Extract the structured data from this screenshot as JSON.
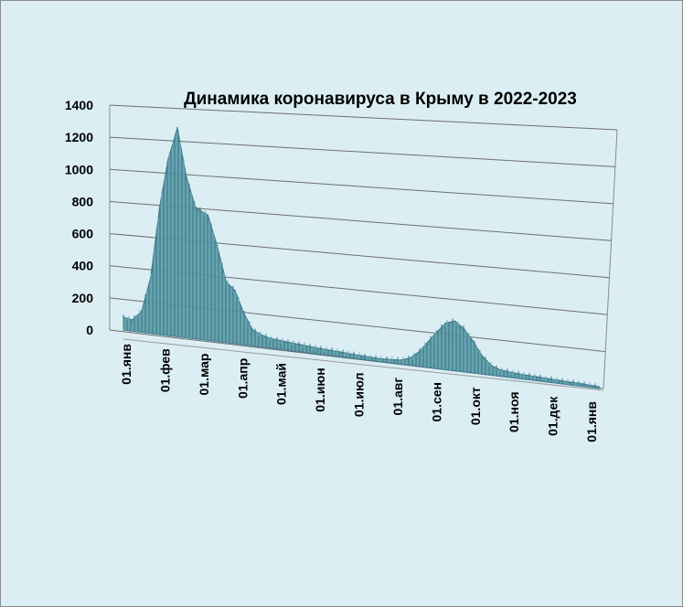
{
  "chart_data": {
    "type": "area",
    "title": "Динамика  коронавируса в Крыму в 2022-2023",
    "ylim": [
      0,
      1400
    ],
    "yticks": [
      0,
      200,
      400,
      600,
      800,
      1000,
      1200,
      1400
    ],
    "xticks": [
      "01.янв",
      "01.фев",
      "01.мар",
      "01.апр",
      "01.май",
      "01.июн",
      "01.июл",
      "01.авг",
      "01.сен",
      "01.окт",
      "01.ноя",
      "01.дек",
      "01.янв"
    ],
    "grid": true,
    "legend": "none",
    "series_color": "#4f8f9e",
    "background_color": "#dbeef4",
    "series": [
      {
        "x": [
          "01.янв",
          "08.янв",
          "15.янв",
          "22.янв",
          "29.янв",
          "05.фев",
          "12.фев",
          "19.фев",
          "26.фев",
          "05.мар",
          "12.мар",
          "19.мар",
          "26.мар",
          "02.апр",
          "09.апр",
          "16.апр",
          "23.апр",
          "30.апр",
          "15.май",
          "01.июн",
          "15.июн",
          "01.июл",
          "15.июл",
          "01.авг",
          "08.авг",
          "15.авг",
          "22.авг",
          "29.авг",
          "05.сен",
          "12.сен",
          "19.сен",
          "26.сен",
          "03.окт",
          "10.окт",
          "17.окт",
          "01.ноя",
          "15.ноя",
          "01.дек",
          "15.дек",
          "01.янв"
        ],
        "values": [
          80,
          70,
          130,
          350,
          800,
          1100,
          1300,
          1000,
          820,
          780,
          600,
          380,
          330,
          200,
          100,
          75,
          60,
          55,
          45,
          35,
          30,
          22,
          18,
          25,
          45,
          90,
          160,
          230,
          290,
          310,
          270,
          200,
          110,
          60,
          40,
          30,
          25,
          20,
          18,
          12
        ]
      }
    ]
  }
}
